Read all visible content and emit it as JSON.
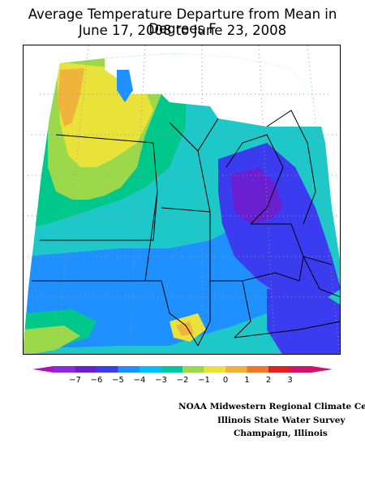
{
  "title": {
    "line1": "Average Temperature Departure from Mean in Degrees F",
    "line2": "June 17, 2008 to June 23, 2008"
  },
  "legend": {
    "ticks": [
      "−7",
      "−6",
      "−5",
      "−4",
      "−3",
      "−2",
      "−1",
      "0",
      "1",
      "2",
      "3"
    ],
    "colors": [
      "#8a2be2",
      "#6a1fd0",
      "#3b3bf0",
      "#1e90ff",
      "#00bfff",
      "#00c8a0",
      "#9bd94a",
      "#e8e23a",
      "#f0b43c",
      "#f07828",
      "#e81e1e",
      "#d4106a"
    ],
    "arrow_left_color": "#b010c0",
    "arrow_right_color": "#d4106a"
  },
  "credits": {
    "line1": "NOAA Midwestern Regional Climate Cent",
    "line2": "Illinois State Water Survey",
    "line3": "Champaign, Illinois"
  }
}
